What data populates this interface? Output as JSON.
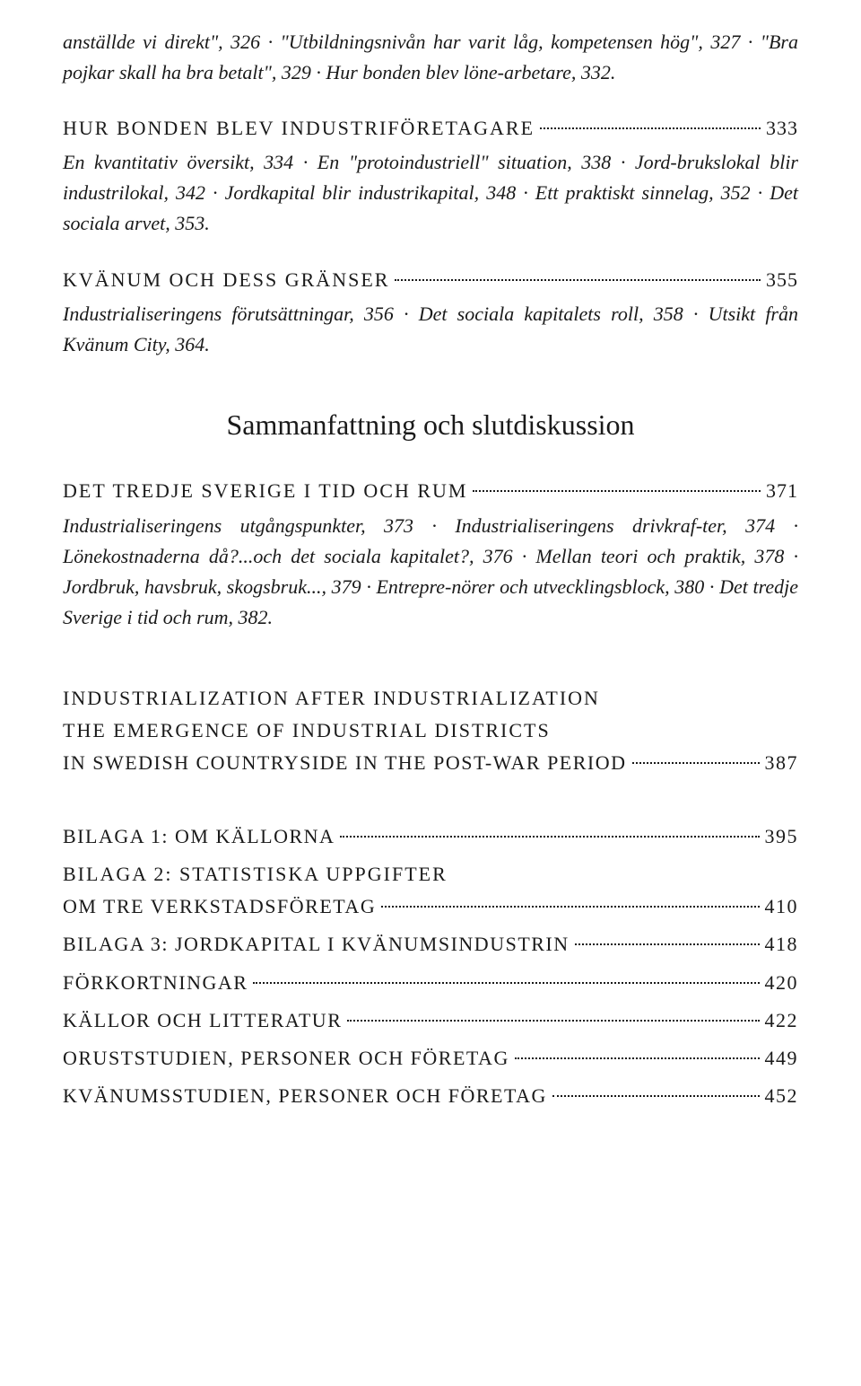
{
  "para1": "anställde vi direkt\", 326 · \"Utbildningsnivån har varit låg, kompetensen hög\", 327 · \"Bra pojkar skall ha bra betalt\", 329 · Hur bonden blev löne-arbetare, 332.",
  "heading1": {
    "text": "HUR BONDEN BLEV INDUSTRIFÖRETAGARE",
    "page": "333"
  },
  "para2": "En kvantitativ översikt, 334 · En \"protoindustriell\" situation, 338 · Jord-brukslokal blir industrilokal, 342 · Jordkapital blir industrikapital, 348 · Ett praktiskt sinnelag, 352 · Det sociala arvet, 353.",
  "heading2": {
    "text": "KVÄNUM OCH DESS GRÄNSER",
    "page": "355"
  },
  "para3": "Industrialiseringens förutsättningar, 356 · Det sociala kapitalets roll, 358 · Utsikt från Kvänum City, 364.",
  "mainTitle": "Sammanfattning och slutdiskussion",
  "heading3": {
    "text": "DET TREDJE SVERIGE I TID OCH RUM",
    "page": "371"
  },
  "para4": "Industrialiseringens utgångspunkter, 373 · Industrialiseringens drivkraf-ter, 374 · Lönekostnaderna då?...och det sociala kapitalet?, 376 · Mellan teori och praktik, 378 · Jordbruk, havsbruk, skogsbruk..., 379 · Entrepre-nörer och utvecklingsblock, 380 · Det tredje Sverige i tid och rum, 382.",
  "engTitle1": "INDUSTRIALIZATION AFTER INDUSTRIALIZATION",
  "engTitle2": "THE EMERGENCE OF INDUSTRIAL DISTRICTS",
  "heading4": {
    "text": "IN SWEDISH COUNTRYSIDE IN THE POST-WAR PERIOD",
    "page": "387"
  },
  "entries": [
    {
      "text": "BILAGA 1: OM KÄLLORNA",
      "page": "395"
    },
    {
      "text_line1": "BILAGA 2: STATISTISKA UPPGIFTER",
      "text_line2": "OM TRE VERKSTADSFÖRETAG",
      "page": "410",
      "multiline": true
    },
    {
      "text": "BILAGA 3: JORDKAPITAL I KVÄNUMSINDUSTRIN",
      "page": "418"
    },
    {
      "text": "FÖRKORTNINGAR",
      "page": "420"
    },
    {
      "text": "KÄLLOR OCH LITTERATUR",
      "page": "422"
    },
    {
      "text": "ORUSTSTUDIEN, PERSONER OCH FÖRETAG",
      "page": "449"
    },
    {
      "text": "KVÄNUMSSTUDIEN, PERSONER OCH FÖRETAG",
      "page": "452"
    }
  ]
}
